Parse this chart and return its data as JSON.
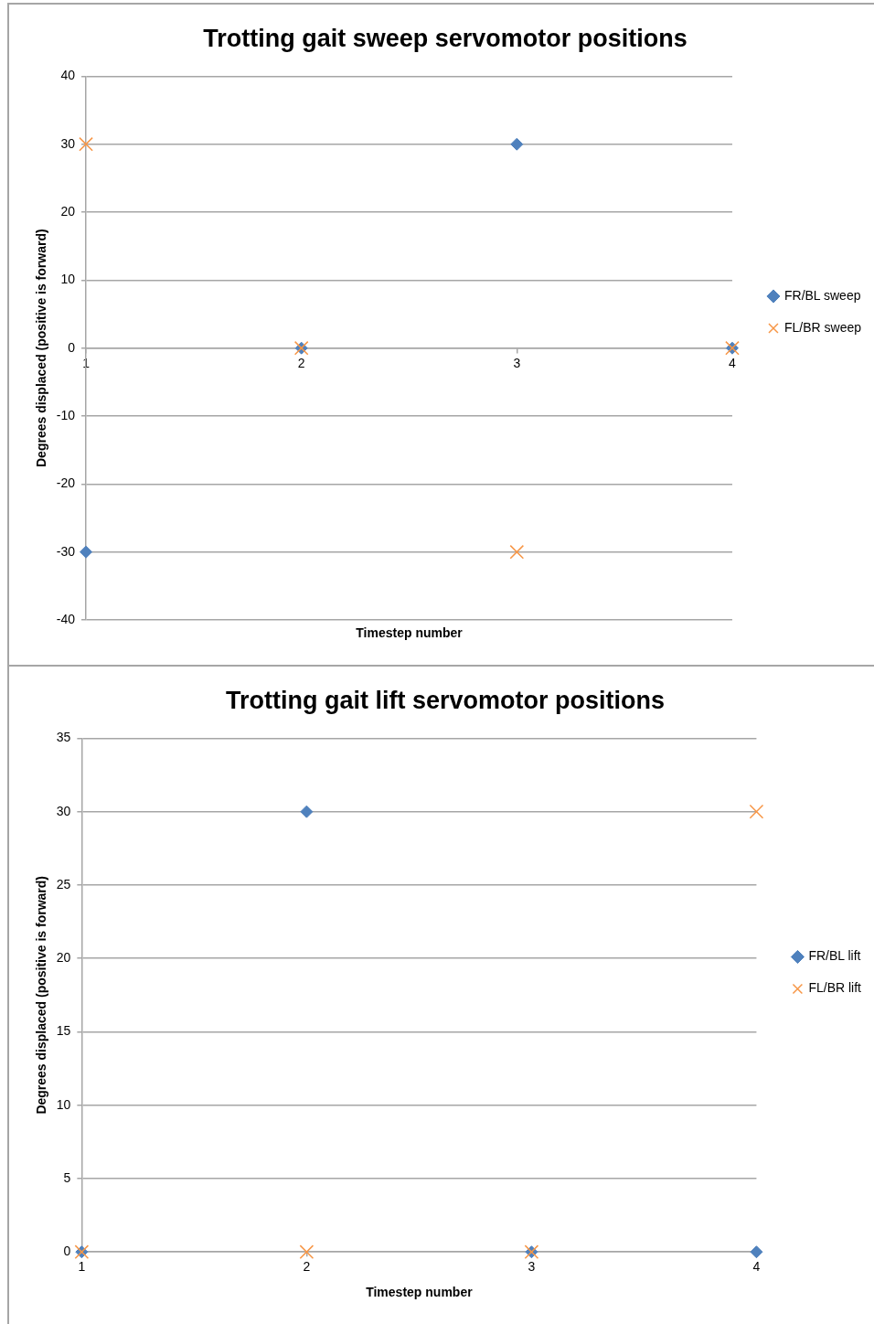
{
  "chart_data": [
    {
      "type": "scatter",
      "title": "Trotting gait sweep servomotor positions",
      "xlabel": "Timestep number",
      "ylabel": "Degrees displaced (positive is forward)",
      "x": [
        1,
        2,
        3,
        4
      ],
      "xlim": [
        1,
        4
      ],
      "xticks": [
        1,
        2,
        3,
        4
      ],
      "ylim": [
        -40,
        40
      ],
      "yticks": [
        -40,
        -30,
        -20,
        -10,
        0,
        10,
        20,
        30,
        40
      ],
      "grid": "y",
      "legend": "right",
      "series": [
        {
          "name": "FR/BL sweep",
          "color": "#4f81bd",
          "marker": "diamond",
          "values": [
            -30,
            0,
            30,
            0
          ]
        },
        {
          "name": "FL/BR sweep",
          "color": "#f79646",
          "marker": "cross",
          "values": [
            30,
            0,
            -30,
            0
          ]
        }
      ]
    },
    {
      "type": "scatter",
      "title": "Trotting gait lift servomotor positions",
      "xlabel": "Timestep number",
      "ylabel": "Degrees displaced (positive is forward)",
      "x": [
        1,
        2,
        3,
        4
      ],
      "xlim": [
        1,
        4
      ],
      "xticks": [
        1,
        2,
        3,
        4
      ],
      "ylim": [
        0,
        35
      ],
      "yticks": [
        0,
        5,
        10,
        15,
        20,
        25,
        30,
        35
      ],
      "grid": "y",
      "legend": "right",
      "series": [
        {
          "name": "FR/BL lift",
          "color": "#4f81bd",
          "marker": "diamond",
          "values": [
            0,
            30,
            0,
            0
          ]
        },
        {
          "name": "FL/BR lift",
          "color": "#f79646",
          "marker": "cross",
          "values": [
            0,
            0,
            0,
            30
          ]
        }
      ]
    }
  ]
}
